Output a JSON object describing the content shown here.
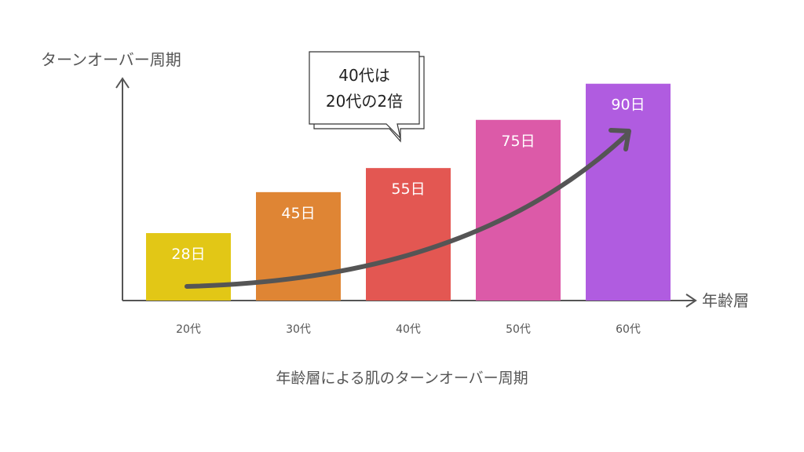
{
  "chart_data": {
    "type": "bar",
    "title": "年齢層による肌のターンオーバー周期",
    "xlabel": "年齢層",
    "ylabel": "ターンオーバー周期",
    "categories": [
      "20代",
      "30代",
      "40代",
      "50代",
      "60代"
    ],
    "values": [
      28,
      45,
      55,
      75,
      90
    ],
    "value_labels": [
      "28日",
      "45日",
      "55日",
      "75日",
      "90日"
    ],
    "unit": "日",
    "ylim": [
      0,
      100
    ],
    "grid": false,
    "colors": [
      "#e2c716",
      "#df8534",
      "#e35752",
      "#dc5aa8",
      "#b05ce0"
    ],
    "trend_arrow_color": "#555555",
    "annotation": {
      "line1": "40代は",
      "line2": "20代の2倍"
    }
  }
}
